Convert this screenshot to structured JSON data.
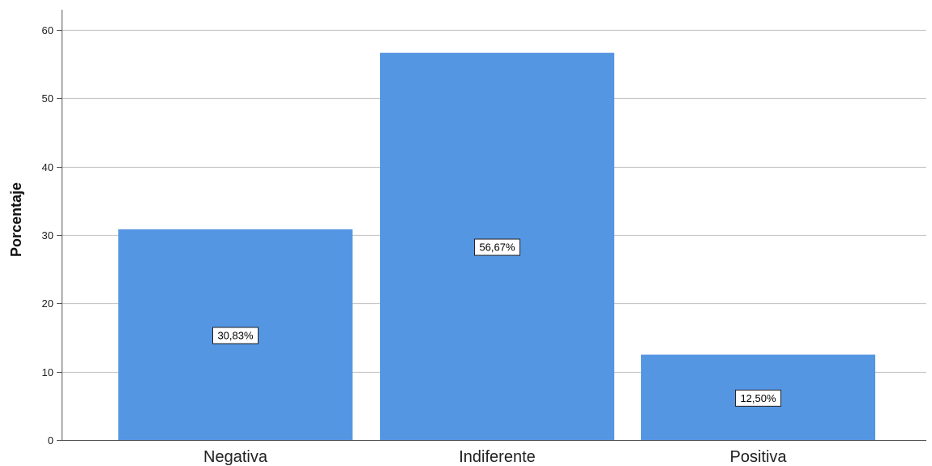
{
  "chart_data": {
    "type": "bar",
    "categories": [
      "Negativa",
      "Indiferente",
      "Positiva"
    ],
    "values": [
      30.83,
      56.67,
      12.5
    ],
    "data_labels": [
      "30,83%",
      "56,67%",
      "12,50%"
    ],
    "ylabel": "Porcentaje",
    "xlabel": "",
    "ylim": [
      0,
      63
    ],
    "yticks": [
      0,
      10,
      20,
      30,
      40,
      50,
      60
    ],
    "grid": "horizontal",
    "bar_color": "#5596e3",
    "grid_color": "#c8c8c8",
    "axis_color": "#555555"
  }
}
